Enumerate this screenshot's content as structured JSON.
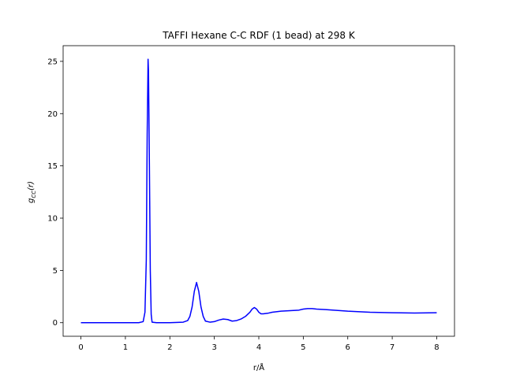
{
  "chart_data": {
    "type": "line",
    "title": "TAFFI Hexane C-C RDF (1 bead) at 298 K",
    "xlabel": "r/Å",
    "ylabel_main": "g",
    "ylabel_sub": "CC",
    "ylabel_arg": "(r)",
    "xlim": [
      -0.4,
      8.4
    ],
    "ylim": [
      -1.3,
      26.5
    ],
    "xticks": [
      0,
      1,
      2,
      3,
      4,
      5,
      6,
      7,
      8
    ],
    "yticks": [
      0,
      5,
      10,
      15,
      20,
      25
    ],
    "grid": false,
    "line_color": "#0000ff",
    "series": [
      {
        "x": [
          0,
          0.5,
          1.0,
          1.3,
          1.4,
          1.44,
          1.47,
          1.49,
          1.51,
          1.52,
          1.54,
          1.56,
          1.58,
          1.6,
          1.7,
          2.0,
          2.3,
          2.4,
          2.45,
          2.5,
          2.55,
          2.6,
          2.65,
          2.7,
          2.75,
          2.8,
          2.9,
          3.0,
          3.1,
          3.2,
          3.3,
          3.4,
          3.5,
          3.6,
          3.7,
          3.8,
          3.85,
          3.9,
          3.95,
          4.0,
          4.05,
          4.1,
          4.2,
          4.3,
          4.5,
          4.7,
          4.9,
          5.0,
          5.1,
          5.2,
          5.3,
          5.5,
          6.0,
          6.5,
          7.0,
          7.5,
          8.0
        ],
        "y": [
          0,
          0,
          0,
          0,
          0.1,
          1.0,
          6.0,
          18.0,
          25.2,
          24.0,
          15.0,
          5.0,
          0.8,
          0.05,
          0,
          0,
          0.05,
          0.2,
          0.6,
          1.5,
          3.0,
          3.85,
          3.0,
          1.5,
          0.6,
          0.15,
          0.05,
          0.1,
          0.25,
          0.35,
          0.3,
          0.15,
          0.2,
          0.35,
          0.6,
          1.0,
          1.3,
          1.45,
          1.3,
          1.0,
          0.85,
          0.85,
          0.9,
          1.0,
          1.1,
          1.15,
          1.2,
          1.3,
          1.35,
          1.35,
          1.3,
          1.25,
          1.1,
          1.0,
          0.95,
          0.92,
          0.95
        ]
      }
    ]
  }
}
